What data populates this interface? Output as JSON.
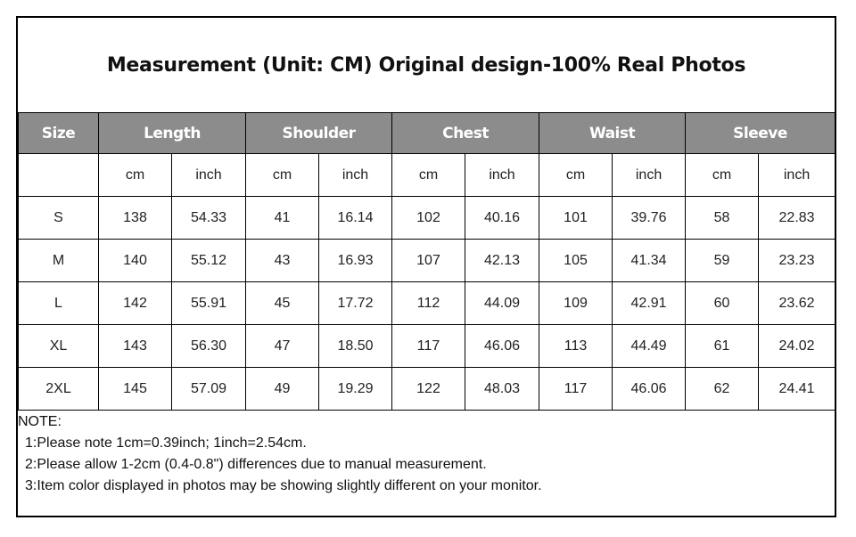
{
  "title": "Measurement (Unit: CM) Original design-100% Real Photos",
  "table": {
    "size_header": "Size",
    "groups": [
      "Length",
      "Shoulder",
      "Chest",
      "Waist",
      "Sleeve"
    ],
    "units": [
      "cm",
      "inch",
      "cm",
      "inch",
      "cm",
      "inch",
      "cm",
      "inch",
      "cm",
      "inch"
    ],
    "rows": [
      {
        "size": "S",
        "values": [
          "138",
          "54.33",
          "41",
          "16.14",
          "102",
          "40.16",
          "101",
          "39.76",
          "58",
          "22.83"
        ]
      },
      {
        "size": "M",
        "values": [
          "140",
          "55.12",
          "43",
          "16.93",
          "107",
          "42.13",
          "105",
          "41.34",
          "59",
          "23.23"
        ]
      },
      {
        "size": "L",
        "values": [
          "142",
          "55.91",
          "45",
          "17.72",
          "112",
          "44.09",
          "109",
          "42.91",
          "60",
          "23.62"
        ]
      },
      {
        "size": "XL",
        "values": [
          "143",
          "56.30",
          "47",
          "18.50",
          "117",
          "46.06",
          "113",
          "44.49",
          "61",
          "24.02"
        ]
      },
      {
        "size": "2XL",
        "values": [
          "145",
          "57.09",
          "49",
          "19.29",
          "122",
          "48.03",
          "117",
          "46.06",
          "62",
          "24.41"
        ]
      }
    ]
  },
  "notes": {
    "heading": "NOTE:",
    "lines": [
      "1:Please note 1cm=0.39inch; 1inch=2.54cm.",
      "2:Please allow 1-2cm (0.4-0.8\") differences due to manual measurement.",
      "3:Item color displayed in photos may be showing slightly different on your monitor."
    ]
  },
  "colors": {
    "header_bg": "#8c8c8c",
    "header_text": "#ffffff",
    "border": "#000000"
  }
}
